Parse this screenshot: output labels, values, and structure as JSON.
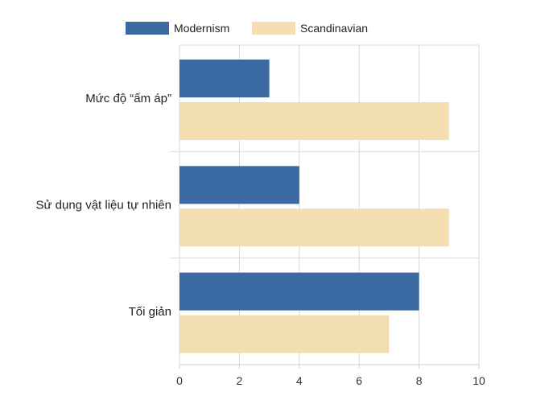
{
  "chart_data": {
    "type": "bar",
    "orientation": "horizontal",
    "categories": [
      "Mức độ “ấm áp”",
      "Sử dụng vật liệu tự nhiên",
      "Tối giản"
    ],
    "series": [
      {
        "name": "Modernism",
        "values": [
          3,
          4,
          8
        ],
        "color": "#3b6aa3"
      },
      {
        "name": "Scandinavian",
        "values": [
          9,
          9,
          7
        ],
        "color": "#f3deb2"
      }
    ],
    "xlim": [
      0,
      10
    ],
    "xticks": [
      0,
      2,
      4,
      6,
      8,
      10
    ],
    "grid": true,
    "legend": "top"
  }
}
